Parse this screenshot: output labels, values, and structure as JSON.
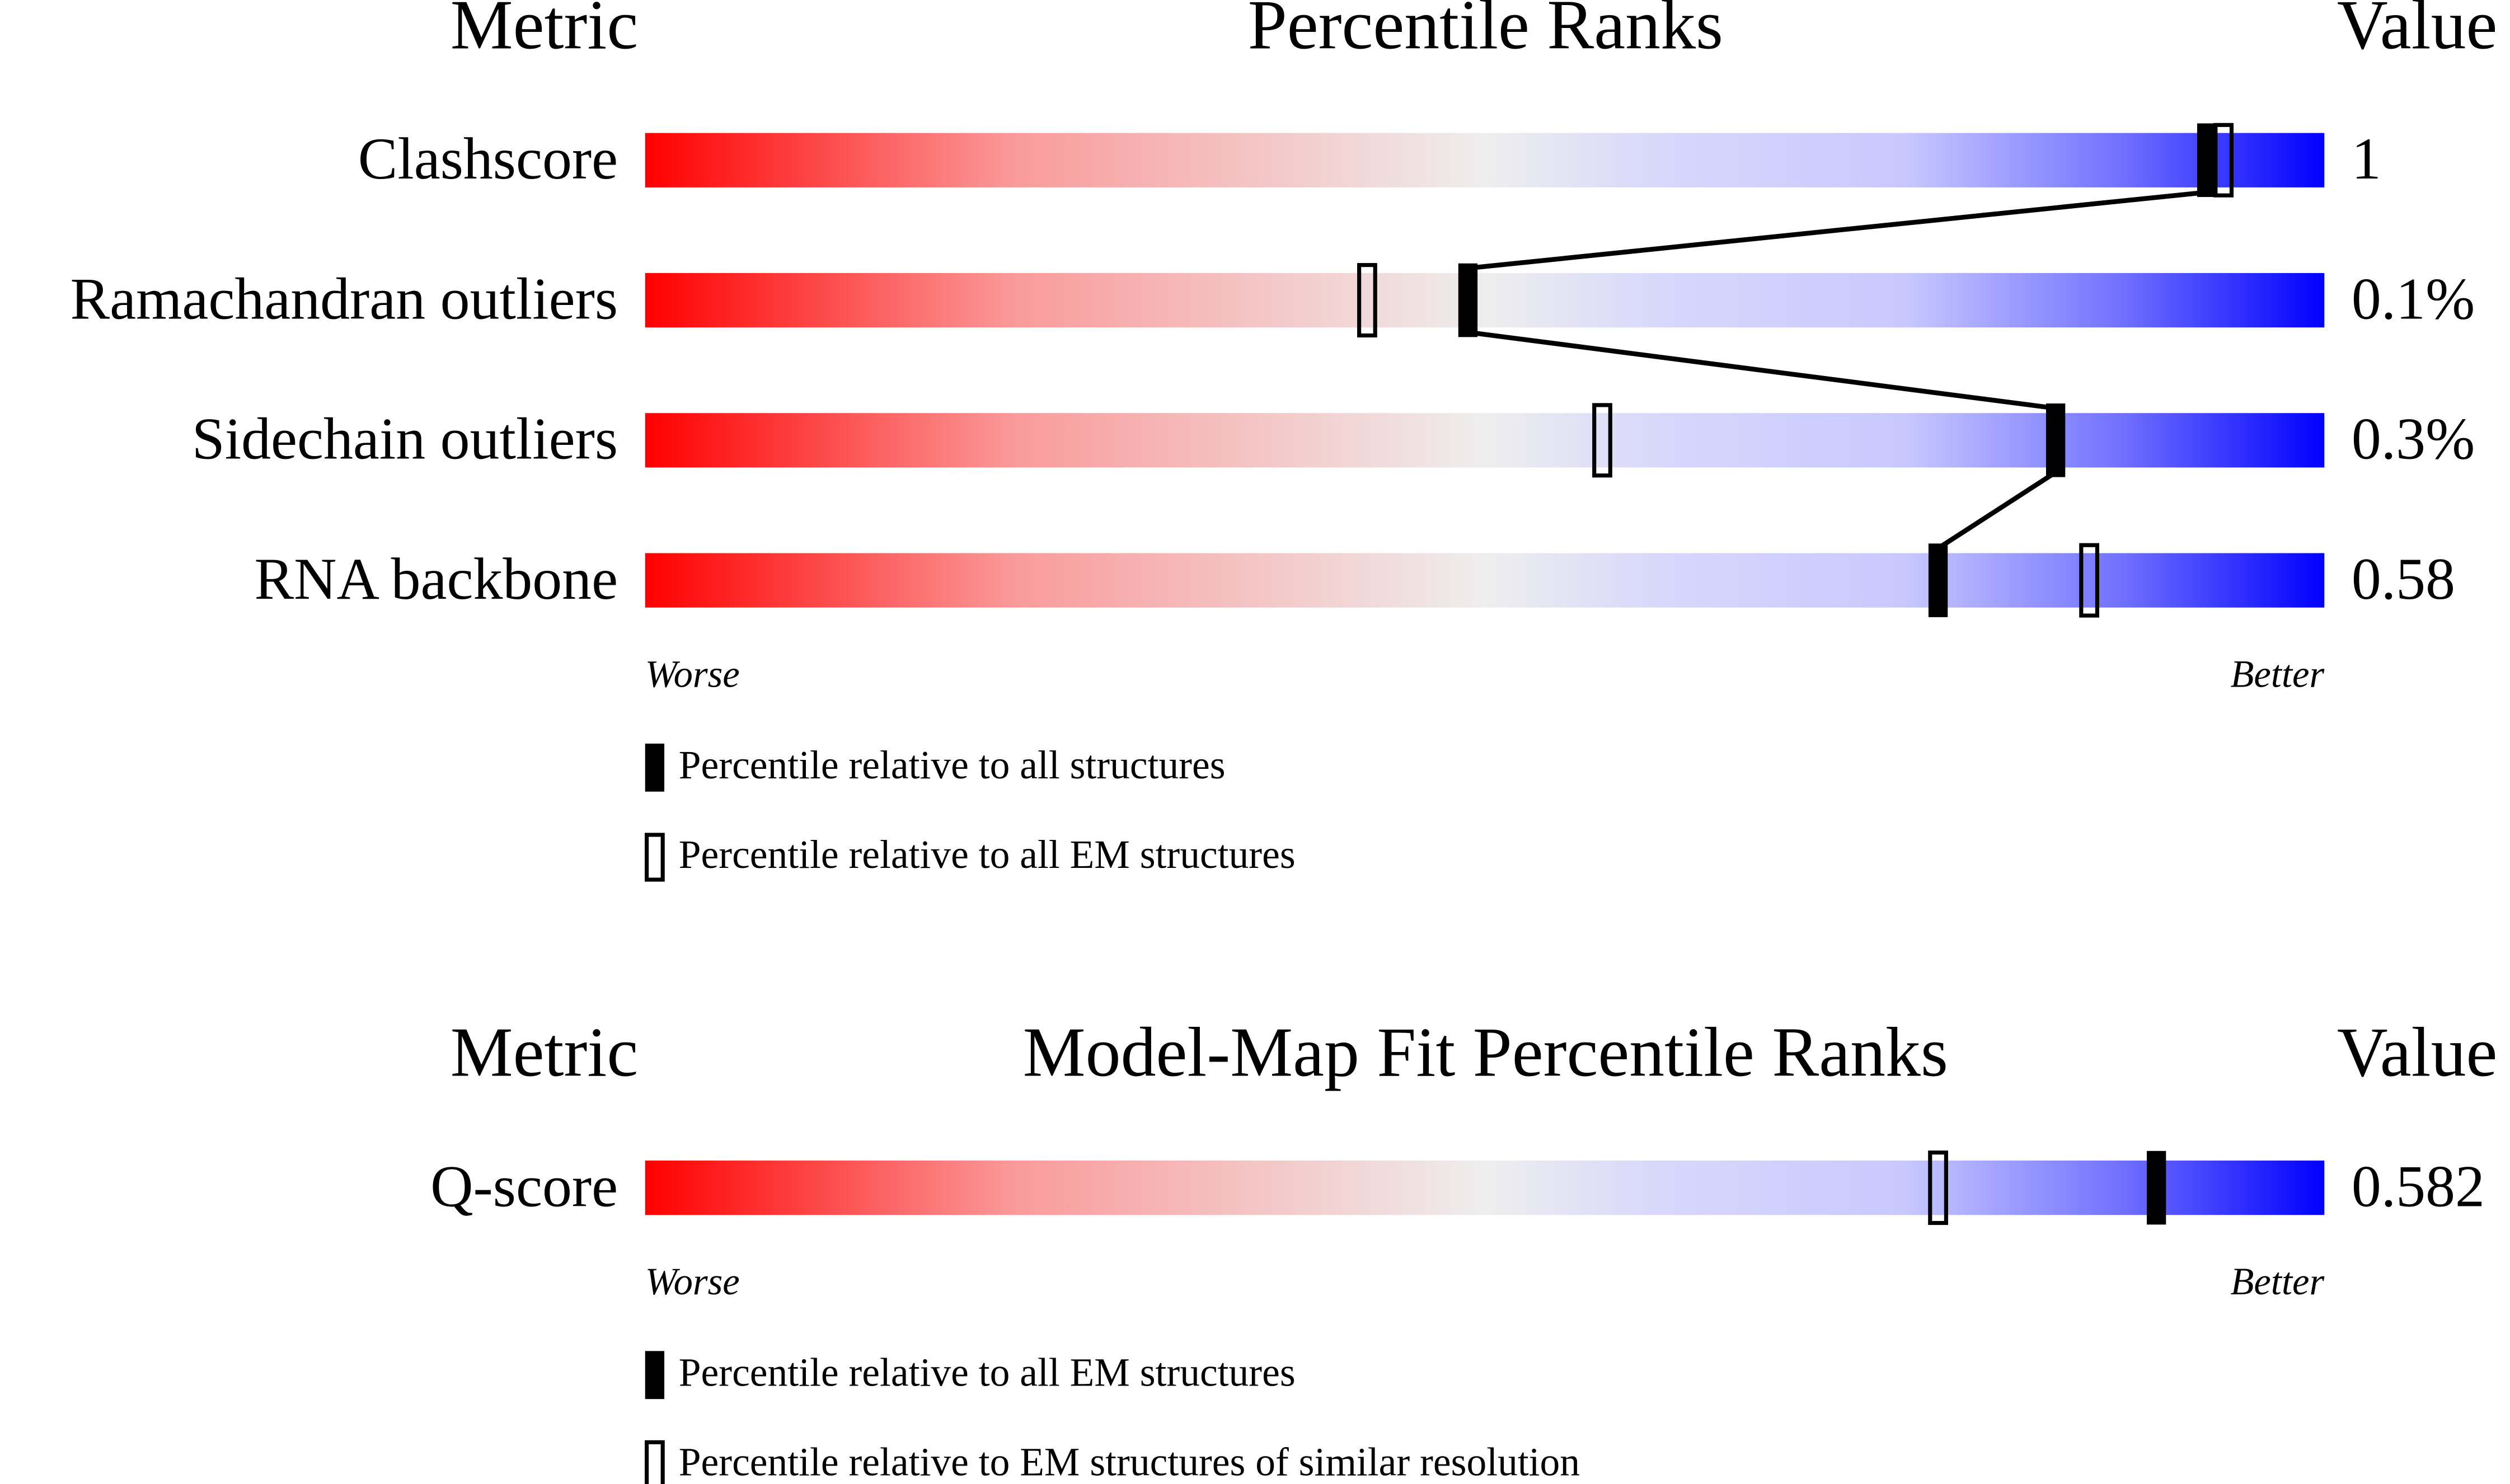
{
  "panels": [
    {
      "header": {
        "metric": "Metric",
        "title": "Percentile Ranks",
        "value": "Value"
      },
      "xlim": [
        0,
        100
      ],
      "rows": [
        {
          "metric": "Clashscore",
          "value": "1",
          "percentile_all": 93,
          "percentile_em": 94
        },
        {
          "metric": "Ramachandran outliers",
          "value": "0.1%",
          "percentile_all": 49,
          "percentile_em": 43
        },
        {
          "metric": "Sidechain outliers",
          "value": "0.3%",
          "percentile_all": 84,
          "percentile_em": 57
        },
        {
          "metric": "RNA backbone",
          "value": "0.58",
          "percentile_all": 77,
          "percentile_em": 86
        }
      ],
      "connect_filled": true,
      "worse": "Worse",
      "better": "Better",
      "legend": {
        "filled": "Percentile relative to all structures",
        "open": "Percentile relative to all EM structures"
      }
    },
    {
      "header": {
        "metric": "Metric",
        "title": "Model-Map Fit Percentile Ranks",
        "value": "Value"
      },
      "xlim": [
        0,
        100
      ],
      "rows": [
        {
          "metric": "Q-score",
          "value": "0.582",
          "percentile_all": 90,
          "percentile_em": 77
        }
      ],
      "connect_filled": false,
      "worse": "Worse",
      "better": "Better",
      "legend": {
        "filled": "Percentile relative to all EM structures",
        "open": "Percentile relative to EM structures of similar resolution"
      }
    }
  ]
}
